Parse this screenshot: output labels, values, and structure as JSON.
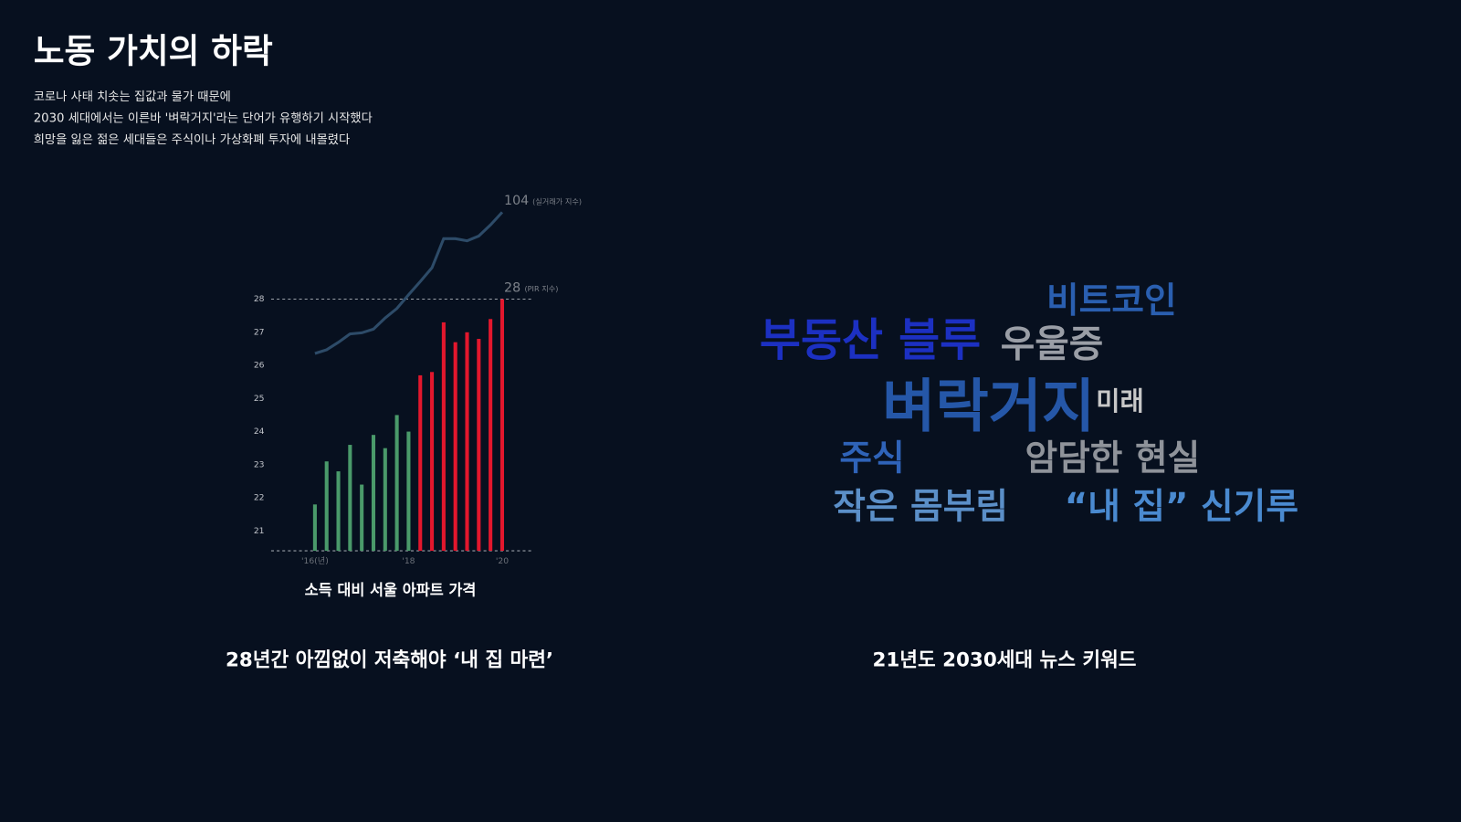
{
  "header": {
    "title": "노동 가치의 하락",
    "lines": [
      "코로나 사태 치솟는 집값과 물가 때문에",
      "2030 세대에서는 이른바 '벼락거지'라는 단어가 유행하기 시작했다",
      "희망을 잃은 젊은 세대들은 주식이나 가상화폐 투자에 내몰렸다"
    ]
  },
  "chart_data": {
    "type": "bar",
    "xlabel": "소득 대비 서울 아파트 가격",
    "caption": "28년간 아낌없이 저축해야 ‘내 집 마련’",
    "categories": [
      "'16(년)",
      null,
      null,
      null,
      null,
      null,
      null,
      null,
      "'18",
      null,
      null,
      null,
      null,
      null,
      null,
      null,
      "'20"
    ],
    "series": [
      {
        "name": "(PIR 지수)",
        "type": "bar",
        "colors": [
          "#4a9a6a",
          "#4a9a6a",
          "#4a9a6a",
          "#4a9a6a",
          "#4a9a6a",
          "#4a9a6a",
          "#4a9a6a",
          "#4a9a6a",
          "#4a9a6a",
          "#e3172d",
          "#e3172d",
          "#e3172d",
          "#e3172d",
          "#e3172d",
          "#e3172d",
          "#e3172d",
          "#e3172d"
        ],
        "values": [
          21.8,
          23.1,
          22.8,
          23.6,
          22.4,
          23.9,
          23.5,
          24.5,
          24.0,
          25.7,
          25.8,
          27.3,
          26.7,
          27.0,
          26.8,
          27.4,
          28
        ]
      },
      {
        "name": "(실거래가 지수)",
        "type": "line",
        "color": "#2d4b68",
        "axis": "y2",
        "values": [
          77.3,
          78.0,
          79.4,
          81.0,
          81.2,
          81.9,
          84.0,
          85.8,
          88.4,
          90.9,
          93.5,
          99.0,
          99.0,
          98.6,
          99.5,
          101.6,
          104
        ]
      }
    ],
    "ylim": [
      20.4,
      28
    ],
    "yticks": [
      21,
      22,
      23,
      24,
      25,
      26,
      27,
      28
    ],
    "y2lim": [
      40,
      108
    ]
  },
  "wordcloud": {
    "caption": "21년도 2030세대 뉴스 키워드",
    "words": [
      {
        "text": "비트코인",
        "color": "#2a5fb0"
      },
      {
        "text": "부동산 블루",
        "color": "#1c30c2"
      },
      {
        "text": "우울증",
        "color": "#9a9ea6"
      },
      {
        "text": "벼락거지",
        "color": "#2557a8"
      },
      {
        "text": "미래",
        "color": "#c8c8c8"
      },
      {
        "text": "주식",
        "color": "#2f63b8"
      },
      {
        "text": "암담한 현실",
        "color": "#8f939a"
      },
      {
        "text": "작은 몸부림",
        "color": "#5b8fc8"
      },
      {
        "text": "“내 집” 신기루",
        "color": "#4a8ad0"
      }
    ]
  }
}
